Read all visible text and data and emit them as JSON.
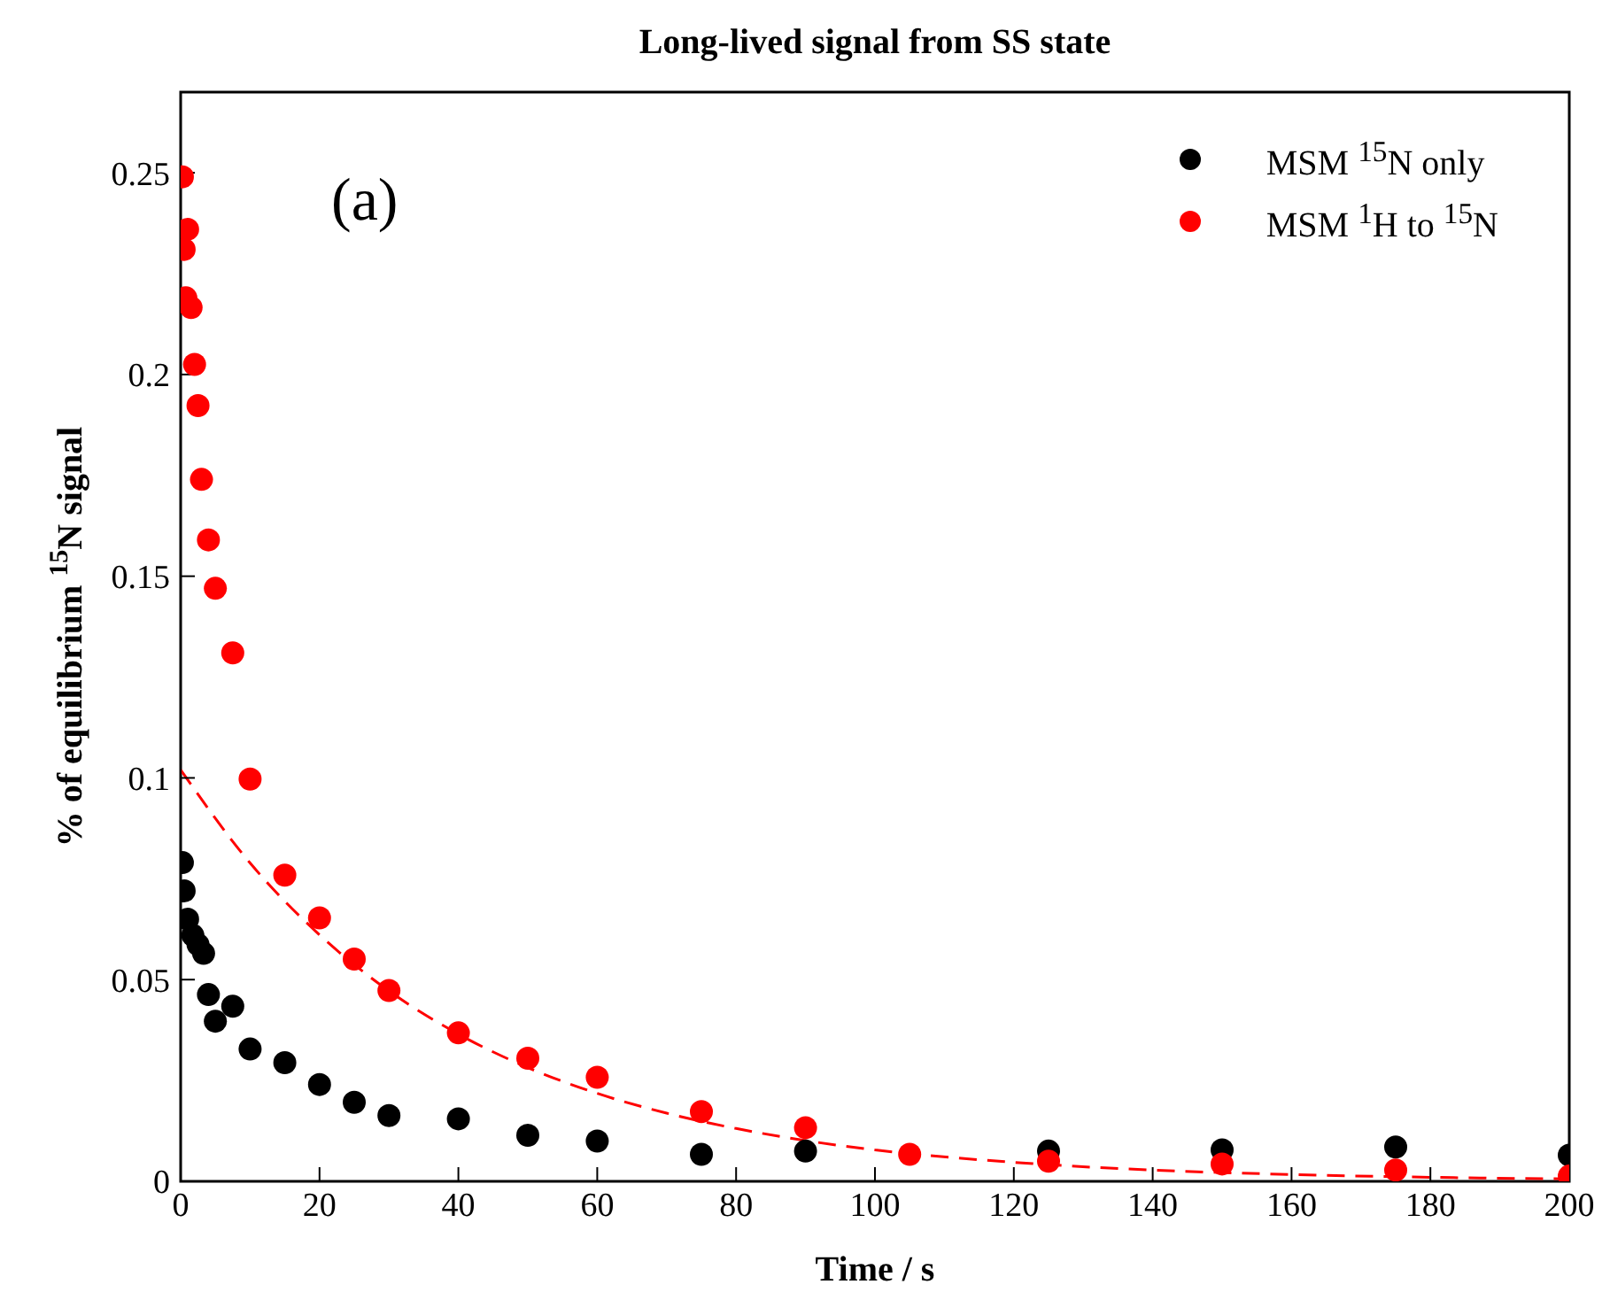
{
  "chart_data": {
    "type": "scatter",
    "title": "Long-lived signal from SS state",
    "xlabel": "Time / s",
    "ylabel": "% of equilibrium $^{15}$N signal",
    "annotations": [
      "(a)"
    ],
    "xlim": [
      0,
      200
    ],
    "xticks": [
      0,
      20,
      40,
      60,
      80,
      100,
      120,
      140,
      160,
      180,
      200
    ],
    "ylim": [
      0,
      0.27
    ],
    "yticks": [
      0,
      0.05,
      0.1,
      0.15,
      0.2,
      0.25
    ],
    "grid": false,
    "legend": "top right",
    "marker": "circle",
    "series": [
      {
        "name": "MSM $^{15}$N only",
        "color": "#000000",
        "x": [
          0.25,
          0.5,
          1,
          1.75,
          2.5,
          3.3,
          4,
          5,
          7.5,
          10,
          15,
          20,
          25,
          30,
          40,
          50,
          60,
          75,
          90,
          125,
          150,
          175,
          200
        ],
        "values": [
          0.079,
          0.072,
          0.065,
          0.061,
          0.0587,
          0.0565,
          0.0463,
          0.0397,
          0.0434,
          0.0328,
          0.0294,
          0.024,
          0.0196,
          0.0163,
          0.0155,
          0.0114,
          0.01,
          0.0067,
          0.0075,
          0.0075,
          0.0078,
          0.0085,
          0.0065
        ]
      },
      {
        "name": "MSM $^{1}$H to $^{15}$N",
        "color": "#ff0000",
        "x": [
          0.25,
          1,
          0.5,
          0.75,
          1.5,
          2,
          2.5,
          3,
          4,
          5,
          7.5,
          10,
          15,
          20,
          25,
          30,
          40,
          50,
          60,
          75,
          90,
          105,
          125,
          150,
          175,
          200
        ],
        "values": [
          0.249,
          0.236,
          0.231,
          0.219,
          0.2166,
          0.2025,
          0.1923,
          0.174,
          0.159,
          0.147,
          0.131,
          0.0997,
          0.0759,
          0.0653,
          0.0551,
          0.0473,
          0.0368,
          0.0305,
          0.0258,
          0.0173,
          0.0133,
          0.0067,
          0.005,
          0.0043,
          0.0028,
          0.0013
        ]
      },
      {
        "color": "#ff0000",
        "type": "line",
        "marker": "none",
        "line_style": "dashed",
        "x": [
          0,
          10,
          20,
          30,
          40,
          50,
          60,
          70,
          80,
          90,
          100,
          120,
          140,
          160,
          180,
          200
        ],
        "values": [
          0.102,
          0.0789,
          0.0611,
          0.0472,
          0.0365,
          0.0282,
          0.0218,
          0.0169,
          0.0131,
          0.0101,
          0.0078,
          0.0047,
          0.0028,
          0.0017,
          0.001,
          0.0006
        ]
      }
    ]
  }
}
